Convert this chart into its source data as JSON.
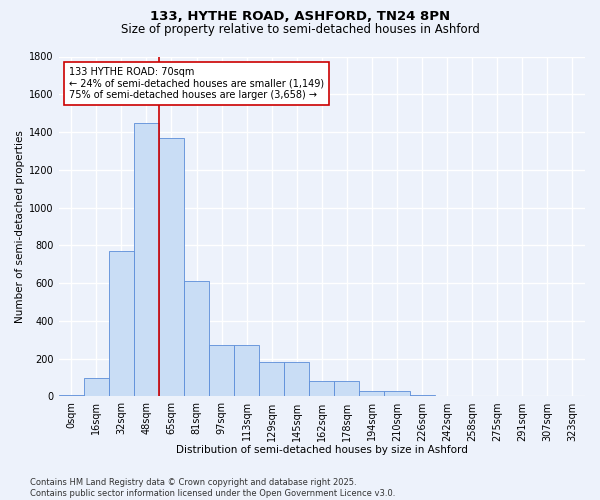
{
  "title_line1": "133, HYTHE ROAD, ASHFORD, TN24 8PN",
  "title_line2": "Size of property relative to semi-detached houses in Ashford",
  "xlabel": "Distribution of semi-detached houses by size in Ashford",
  "ylabel": "Number of semi-detached properties",
  "bin_labels": [
    "0sqm",
    "16sqm",
    "32sqm",
    "48sqm",
    "65sqm",
    "81sqm",
    "97sqm",
    "113sqm",
    "129sqm",
    "145sqm",
    "162sqm",
    "178sqm",
    "194sqm",
    "210sqm",
    "226sqm",
    "242sqm",
    "258sqm",
    "275sqm",
    "291sqm",
    "307sqm",
    "323sqm"
  ],
  "bar_values": [
    10,
    100,
    770,
    1450,
    1370,
    610,
    270,
    270,
    180,
    180,
    80,
    80,
    30,
    30,
    10,
    5,
    2,
    0,
    0,
    0,
    0
  ],
  "bar_color": "#c9ddf5",
  "bar_edge_color": "#5b8dd9",
  "vline_x_bin": 4,
  "vline_color": "#cc0000",
  "annotation_line1": "133 HYTHE ROAD: 70sqm",
  "annotation_line2": "← 24% of semi-detached houses are smaller (1,149)",
  "annotation_line3": "75% of semi-detached houses are larger (3,658) →",
  "annotation_box_color": "#ffffff",
  "annotation_box_edge": "#cc0000",
  "ylim": [
    0,
    1800
  ],
  "yticks": [
    0,
    200,
    400,
    600,
    800,
    1000,
    1200,
    1400,
    1600,
    1800
  ],
  "footnote": "Contains HM Land Registry data © Crown copyright and database right 2025.\nContains public sector information licensed under the Open Government Licence v3.0.",
  "bg_color": "#edf2fb",
  "grid_color": "#ffffff",
  "title_fontsize": 9.5,
  "subtitle_fontsize": 8.5,
  "axis_label_fontsize": 7.5,
  "tick_fontsize": 7,
  "annotation_fontsize": 7,
  "footnote_fontsize": 6
}
